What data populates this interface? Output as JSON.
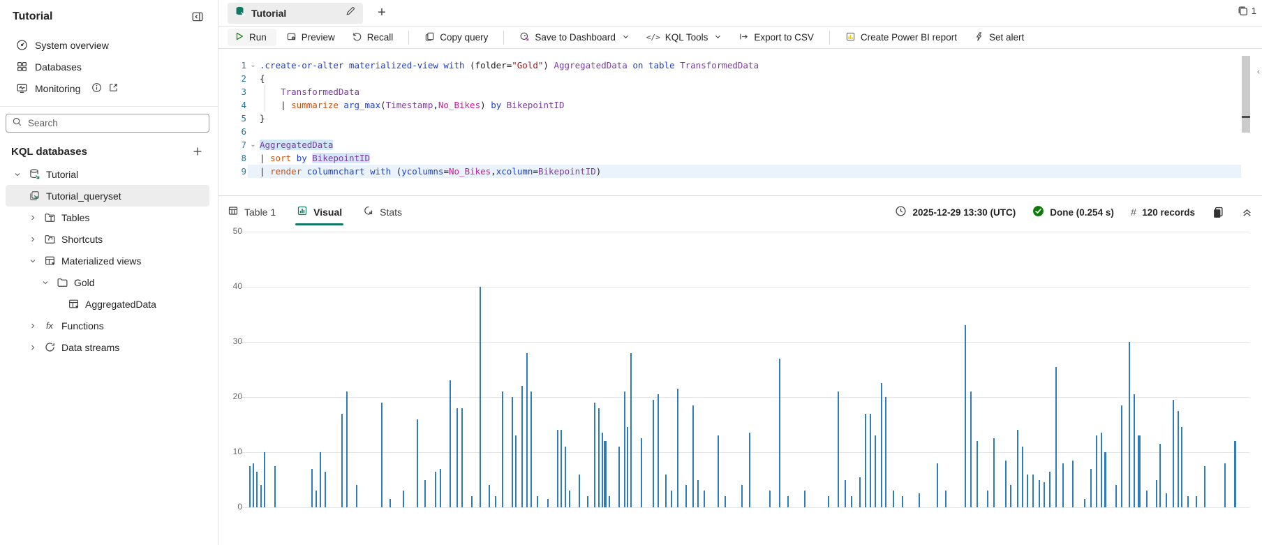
{
  "sidebar": {
    "title": "Tutorial",
    "nav": [
      {
        "label": "System overview"
      },
      {
        "label": "Databases"
      },
      {
        "label": "Monitoring"
      }
    ],
    "search_placeholder": "Search",
    "section_title": "KQL databases",
    "tree": [
      {
        "label": "Tutorial"
      },
      {
        "label": "Tutorial_queryset"
      },
      {
        "label": "Tables"
      },
      {
        "label": "Shortcuts"
      },
      {
        "label": "Materialized views"
      },
      {
        "label": "Gold"
      },
      {
        "label": "AggregatedData"
      },
      {
        "label": "Functions"
      },
      {
        "label": "Data streams"
      }
    ]
  },
  "tabbar": {
    "tab_label": "Tutorial",
    "window_count": "1"
  },
  "toolbar": {
    "run": "Run",
    "preview": "Preview",
    "recall": "Recall",
    "copy_query": "Copy query",
    "save_to_dashboard": "Save to Dashboard",
    "kql_tools": "KQL Tools",
    "export_csv": "Export to CSV",
    "power_bi": "Create Power BI report",
    "set_alert": "Set alert"
  },
  "icons": {
    "fx": "fx",
    "hash": "#",
    "code": "</>",
    "collapse_editor": "‹"
  },
  "editor": {
    "lines": [
      {
        "n": "1",
        "fold": true,
        "tokens": [
          {
            "t": ".create-or-alter materialized-view with ",
            "c": "kw"
          },
          {
            "t": "(folder=",
            "c": "pl"
          },
          {
            "t": "\"Gold\"",
            "c": "str"
          },
          {
            "t": ") ",
            "c": "pl"
          },
          {
            "t": "AggregatedData",
            "c": "tbl"
          },
          {
            "t": " on table ",
            "c": "kw"
          },
          {
            "t": "TransformedData",
            "c": "tbl"
          }
        ]
      },
      {
        "n": "2",
        "tokens": [
          {
            "t": "{",
            "c": "pl"
          }
        ]
      },
      {
        "n": "3",
        "guide": true,
        "tokens": [
          {
            "t": "    ",
            "c": "pl"
          },
          {
            "t": "TransformedData",
            "c": "tbl"
          }
        ]
      },
      {
        "n": "4",
        "guide": true,
        "tokens": [
          {
            "t": "    | ",
            "c": "pl"
          },
          {
            "t": "summarize",
            "c": "op"
          },
          {
            "t": " ",
            "c": "pl"
          },
          {
            "t": "arg_max",
            "c": "fn"
          },
          {
            "t": "(",
            "c": "pl"
          },
          {
            "t": "Timestamp",
            "c": "tbl"
          },
          {
            "t": ",",
            "c": "pl"
          },
          {
            "t": "No_Bikes",
            "c": "col"
          },
          {
            "t": ") ",
            "c": "pl"
          },
          {
            "t": "by",
            "c": "kw"
          },
          {
            "t": " ",
            "c": "pl"
          },
          {
            "t": "BikepointID",
            "c": "tbl"
          }
        ]
      },
      {
        "n": "5",
        "tokens": [
          {
            "t": "}",
            "c": "pl"
          }
        ]
      },
      {
        "n": "6",
        "tokens": []
      },
      {
        "n": "7",
        "fold": true,
        "tokens": [
          {
            "t": "AggregatedData",
            "c": "tbl",
            "hl": true
          }
        ]
      },
      {
        "n": "8",
        "tokens": [
          {
            "t": "| ",
            "c": "pl"
          },
          {
            "t": "sort",
            "c": "op"
          },
          {
            "t": " ",
            "c": "pl"
          },
          {
            "t": "by",
            "c": "kw"
          },
          {
            "t": " ",
            "c": "pl"
          },
          {
            "t": "BikepointID",
            "c": "tbl",
            "hl": true
          }
        ]
      },
      {
        "n": "9",
        "current": true,
        "tokens": [
          {
            "t": "| ",
            "c": "pl"
          },
          {
            "t": "render",
            "c": "op"
          },
          {
            "t": " ",
            "c": "pl"
          },
          {
            "t": "columnchart",
            "c": "fn"
          },
          {
            "t": " ",
            "c": "pl"
          },
          {
            "t": "with",
            "c": "kw"
          },
          {
            "t": " (",
            "c": "pl"
          },
          {
            "t": "ycolumns",
            "c": "fn"
          },
          {
            "t": "=",
            "c": "pl"
          },
          {
            "t": "No_Bikes",
            "c": "col"
          },
          {
            "t": ",",
            "c": "pl"
          },
          {
            "t": "xcolumn",
            "c": "fn"
          },
          {
            "t": "=",
            "c": "pl"
          },
          {
            "t": "BikepointID",
            "c": "tbl"
          },
          {
            "t": ")",
            "c": "pl"
          }
        ]
      }
    ]
  },
  "results": {
    "tabs": [
      {
        "label": "Table 1"
      },
      {
        "label": "Visual"
      },
      {
        "label": "Stats"
      }
    ],
    "timestamp": "2025-12-29 13:30 (UTC)",
    "status": "Done (0.254 s)",
    "records": "120 records"
  },
  "chart_data": {
    "type": "bar",
    "x_field": "BikepointID",
    "y_field": "No_Bikes",
    "xlim": [
      0,
      838
    ],
    "ylim": [
      0,
      50
    ],
    "x_ticks": [
      0,
      50,
      100,
      150,
      200,
      250,
      300,
      350,
      400,
      450,
      500,
      550,
      600,
      650,
      700,
      750,
      800
    ],
    "y_ticks": [
      0,
      10,
      20,
      30,
      40,
      50
    ],
    "bar_color": "#2e7cbe",
    "grid": true,
    "points": [
      [
        3,
        7.5
      ],
      [
        6,
        8
      ],
      [
        9,
        6.5
      ],
      [
        12,
        4
      ],
      [
        15,
        10
      ],
      [
        24,
        7.5
      ],
      [
        55,
        7
      ],
      [
        58,
        3
      ],
      [
        62,
        10
      ],
      [
        66,
        6.5
      ],
      [
        80,
        17
      ],
      [
        84,
        21
      ],
      [
        92,
        4
      ],
      [
        113,
        19
      ],
      [
        120,
        1.5
      ],
      [
        131,
        3
      ],
      [
        143,
        16
      ],
      [
        149,
        5
      ],
      [
        158,
        6.5
      ],
      [
        162,
        7
      ],
      [
        170,
        23
      ],
      [
        176,
        18
      ],
      [
        180,
        18
      ],
      [
        188,
        2
      ],
      [
        195,
        40
      ],
      [
        203,
        4
      ],
      [
        208,
        2
      ],
      [
        214,
        21
      ],
      [
        222,
        20
      ],
      [
        225,
        13
      ],
      [
        230,
        22
      ],
      [
        234,
        28
      ],
      [
        238,
        21
      ],
      [
        243,
        2
      ],
      [
        252,
        1.5
      ],
      [
        260,
        14
      ],
      [
        263,
        14
      ],
      [
        266,
        11
      ],
      [
        270,
        3
      ],
      [
        278,
        6
      ],
      [
        285,
        2
      ],
      [
        291,
        19
      ],
      [
        294,
        18
      ],
      [
        297,
        13.5
      ],
      [
        299,
        12,
        4
      ],
      [
        303,
        2
      ],
      [
        311,
        11
      ],
      [
        316,
        21
      ],
      [
        318,
        14.5
      ],
      [
        321,
        28
      ],
      [
        330,
        12.5
      ],
      [
        340,
        19.5
      ],
      [
        344,
        20.5
      ],
      [
        350,
        6
      ],
      [
        355,
        3
      ],
      [
        360,
        21.5
      ],
      [
        367,
        4
      ],
      [
        373,
        18.5
      ],
      [
        377,
        5
      ],
      [
        382,
        3
      ],
      [
        394,
        13
      ],
      [
        400,
        2
      ],
      [
        414,
        4
      ],
      [
        420,
        13.5
      ],
      [
        437,
        3
      ],
      [
        445,
        27
      ],
      [
        452,
        2
      ],
      [
        466,
        3
      ],
      [
        486,
        2
      ],
      [
        494,
        21
      ],
      [
        500,
        5
      ],
      [
        505,
        2
      ],
      [
        512,
        5.5
      ],
      [
        517,
        17
      ],
      [
        521,
        17
      ],
      [
        525,
        13
      ],
      [
        530,
        22.5
      ],
      [
        534,
        20
      ],
      [
        540,
        3
      ],
      [
        548,
        2
      ],
      [
        562,
        2.5
      ],
      [
        577,
        8
      ],
      [
        584,
        3
      ],
      [
        600,
        33
      ],
      [
        605,
        21
      ],
      [
        610,
        12
      ],
      [
        619,
        3
      ],
      [
        624,
        12.5
      ],
      [
        634,
        8.5
      ],
      [
        638,
        4
      ],
      [
        644,
        14
      ],
      [
        648,
        11
      ],
      [
        652,
        6
      ],
      [
        657,
        6
      ],
      [
        662,
        5
      ],
      [
        666,
        4.5
      ],
      [
        671,
        6.5
      ],
      [
        676,
        25.5
      ],
      [
        682,
        8
      ],
      [
        690,
        8.5
      ],
      [
        700,
        1.5
      ],
      [
        705,
        7
      ],
      [
        710,
        13
      ],
      [
        714,
        13.5
      ],
      [
        717,
        10,
        3
      ],
      [
        726,
        4
      ],
      [
        731,
        18.5
      ],
      [
        737,
        30
      ],
      [
        741,
        20.5
      ],
      [
        745,
        13,
        4
      ],
      [
        752,
        3
      ],
      [
        760,
        5
      ],
      [
        763,
        11.5
      ],
      [
        768,
        2.5
      ],
      [
        774,
        19.5
      ],
      [
        778,
        17.5
      ],
      [
        781,
        14.5
      ],
      [
        786,
        2
      ],
      [
        793,
        2
      ],
      [
        800,
        7.5
      ],
      [
        817,
        8
      ],
      [
        825,
        12,
        3
      ]
    ]
  }
}
